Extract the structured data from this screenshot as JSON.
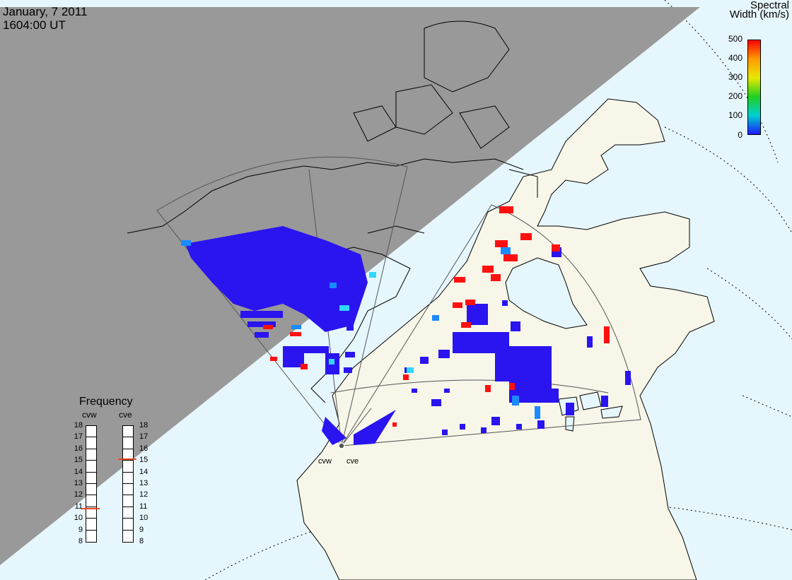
{
  "header": {
    "date": "January, 7 2011",
    "time": "1604:00 UT"
  },
  "colorbar": {
    "title_line1": "Spectral",
    "title_line2": "Width (km/s)",
    "ticks": [
      "500",
      "400",
      "300",
      "200",
      "100",
      "0"
    ],
    "colors": [
      "#ff0000",
      "#ff9a00",
      "#e8e800",
      "#20d020",
      "#00d0d0",
      "#1a1aff"
    ]
  },
  "frequency": {
    "title": "Frequency",
    "radars": [
      {
        "name": "cvw",
        "selected_mhz": 10.8
      },
      {
        "name": "cve",
        "selected_mhz": 15.1
      }
    ],
    "scale": [
      "18",
      "17",
      "16",
      "15",
      "14",
      "13",
      "12",
      "11",
      "10",
      "9",
      "8"
    ]
  },
  "radar_sites": [
    {
      "name": "cvw"
    },
    {
      "name": "cve"
    }
  ],
  "colors": {
    "night": "#999999",
    "land": "#f7f6e8",
    "ocean": "#e6f6fd",
    "echo_low": "#2a14f0",
    "echo_mid": "#1a8aff",
    "echo_cyan": "#30d8ff",
    "echo_high": "#ff1010"
  }
}
